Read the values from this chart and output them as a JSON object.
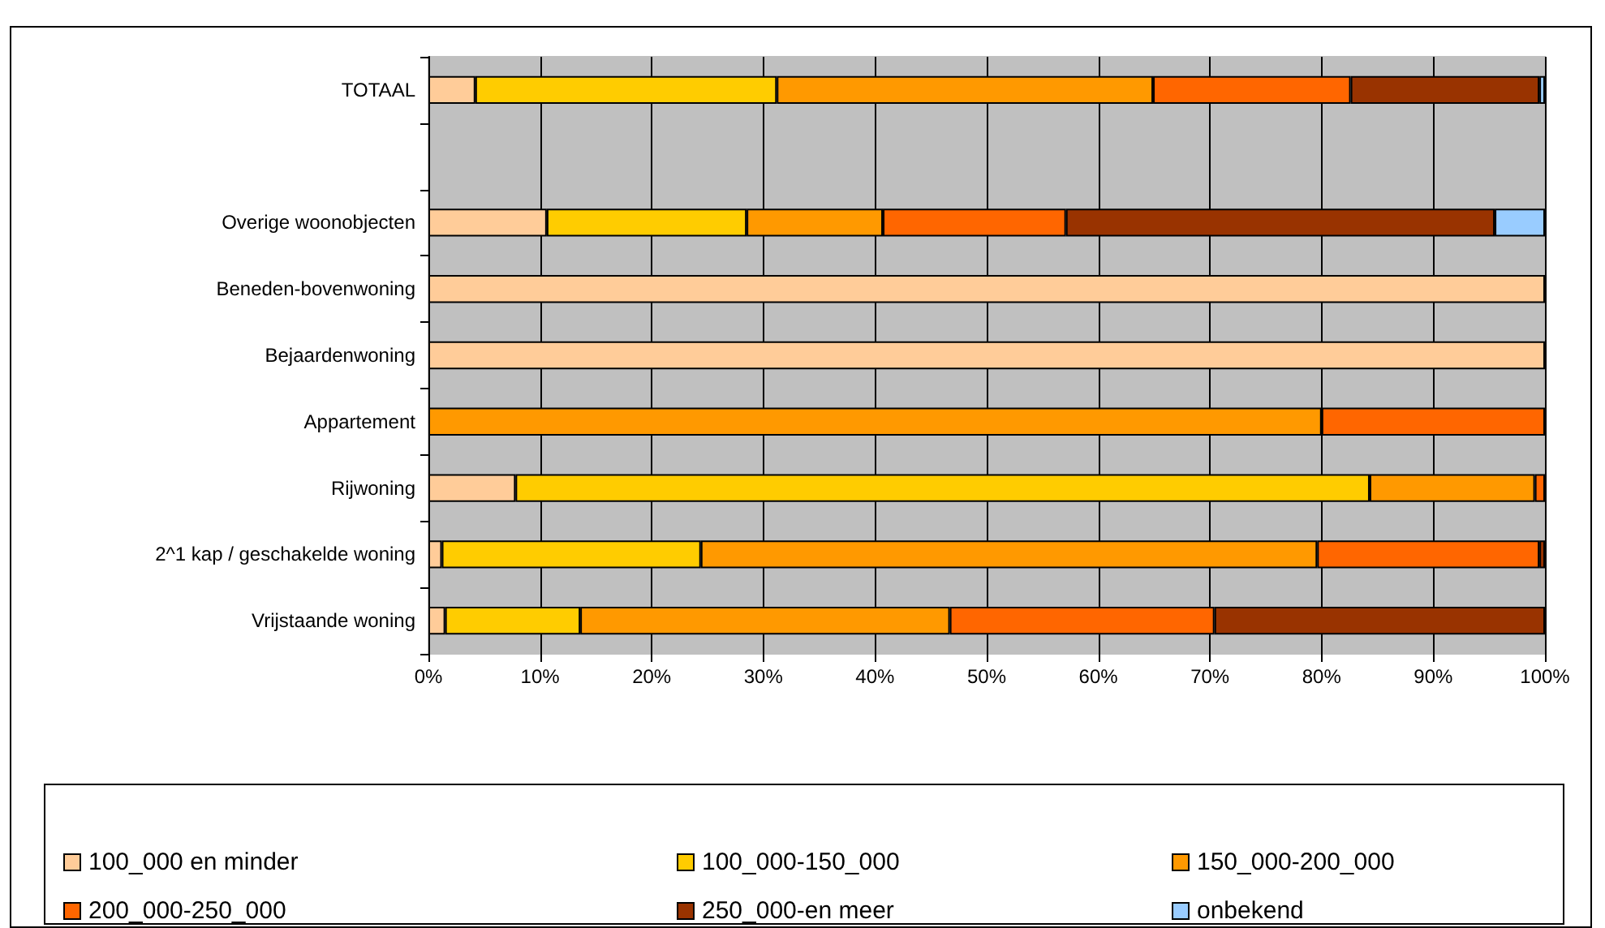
{
  "chart_data": {
    "type": "bar",
    "orientation": "horizontal",
    "stacked": true,
    "categories": [
      "TOTAAL",
      null,
      "Overige woonobjecten",
      "Beneden-bovenwoning",
      "Bejaardenwoning",
      "Appartement",
      "Rijwoning",
      "2^1 kap / geschakelde woning",
      "Vrijstaande woning"
    ],
    "series": [
      {
        "name": "100_000 en minder",
        "color": "#ffcc99",
        "values": [
          4.2,
          null,
          10.6,
          100,
          100,
          0,
          7.8,
          1.2,
          1.5
        ]
      },
      {
        "name": "100_000-150_000",
        "color": "#ffcc00",
        "values": [
          27.0,
          null,
          17.9,
          0,
          0,
          0,
          76.5,
          23.2,
          12.1
        ]
      },
      {
        "name": "150_000-200_000",
        "color": "#ff9900",
        "values": [
          33.7,
          null,
          12.2,
          0,
          0,
          80,
          14.8,
          55.2,
          33.1
        ]
      },
      {
        "name": "200_000-250_000",
        "color": "#ff6600",
        "values": [
          17.7,
          null,
          16.4,
          0,
          0,
          20,
          0.9,
          19.9,
          23.7
        ]
      },
      {
        "name": "250_000-en meer",
        "color": "#993300",
        "values": [
          16.9,
          null,
          38.4,
          0,
          0,
          0,
          0,
          0.5,
          29.6
        ]
      },
      {
        "name": "onbekend",
        "color": "#99ccff",
        "values": [
          0.5,
          null,
          4.5,
          0,
          0,
          0,
          0,
          0,
          0
        ]
      }
    ],
    "xlim": [
      0,
      100
    ],
    "xticks": [
      {
        "value": 0,
        "label": "0%"
      },
      {
        "value": 10,
        "label": "10%"
      },
      {
        "value": 20,
        "label": "20%"
      },
      {
        "value": 30,
        "label": "30%"
      },
      {
        "value": 40,
        "label": "40%"
      },
      {
        "value": 50,
        "label": "50%"
      },
      {
        "value": 60,
        "label": "60%"
      },
      {
        "value": 70,
        "label": "70%"
      },
      {
        "value": 80,
        "label": "80%"
      },
      {
        "value": 90,
        "label": "90%"
      },
      {
        "value": 100,
        "label": "100%"
      }
    ],
    "grid": "x",
    "legend": "bottom"
  }
}
